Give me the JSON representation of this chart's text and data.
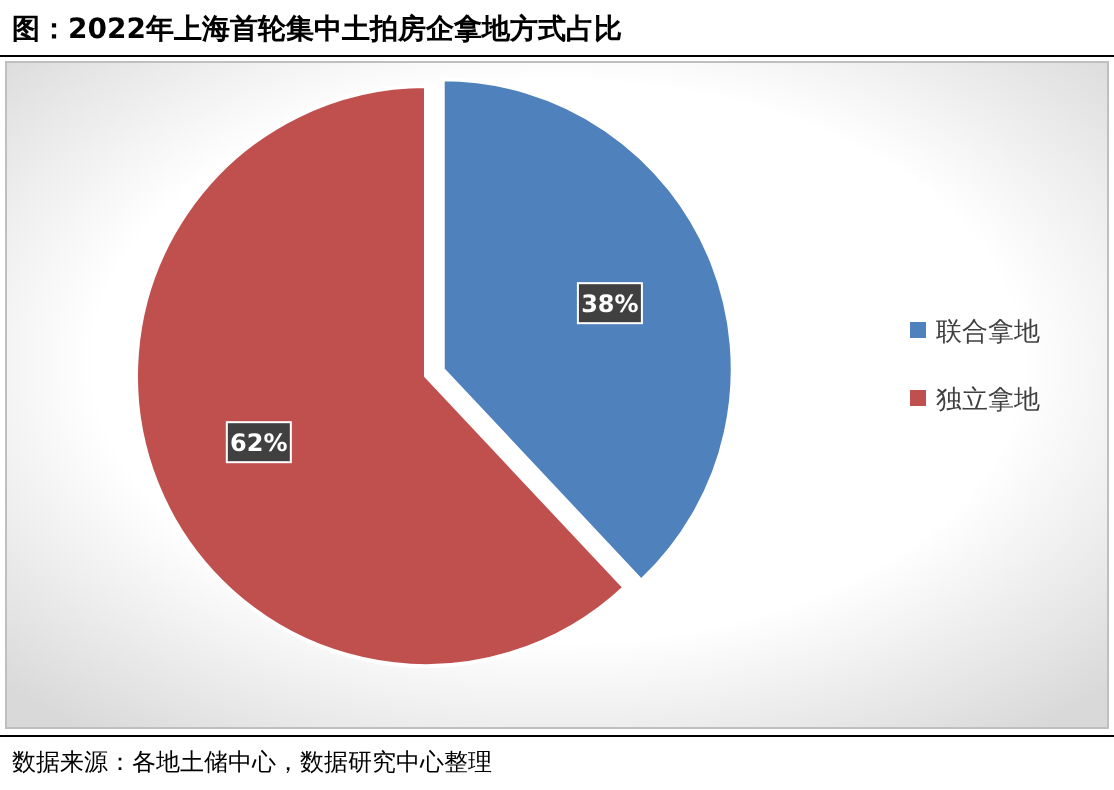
{
  "chart_data": {
    "type": "pie",
    "title": "图：2022年上海首轮集中土拍房企拿地方式占比",
    "categories": [
      "联合拿地",
      "独立拿地"
    ],
    "values": [
      38,
      62
    ],
    "colors": [
      "#4f81bd",
      "#c0504d"
    ],
    "value_labels": [
      "38%",
      "62%"
    ],
    "legend": "right",
    "annotations": [
      "数据来源：各地土储中心，数据研究中心整理"
    ]
  }
}
